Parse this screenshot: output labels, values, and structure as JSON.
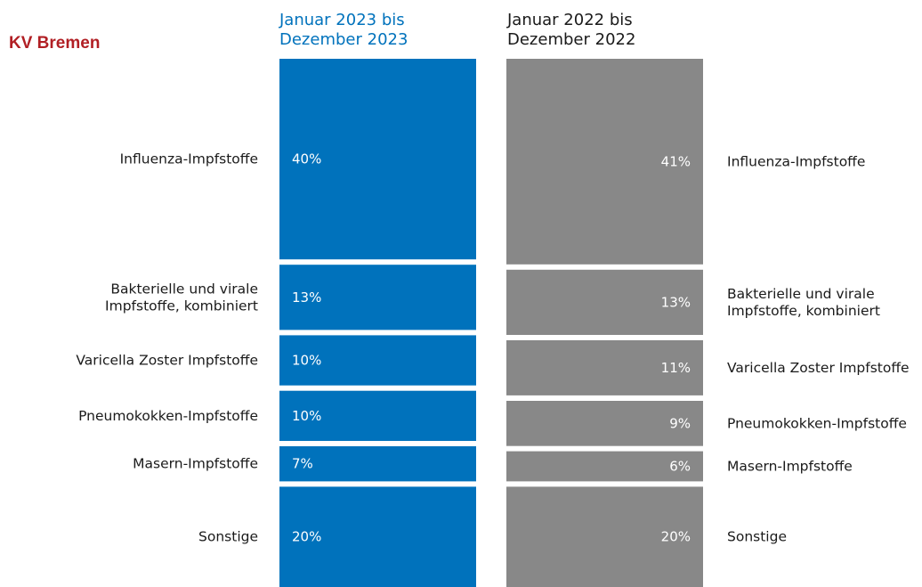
{
  "region_label": "KV Bremen",
  "colors": {
    "region": "#b11f24",
    "series_2023": "#0072bc",
    "series_2022": "#888888",
    "label": "#1a1a1a"
  },
  "columns": {
    "current_title": "Januar 2023 bis\nDezember 2023",
    "previous_title": "Januar 2022 bis\nDezember 2022"
  },
  "chart_data": {
    "type": "bar",
    "stacked": "100%",
    "orientation": "vertical-stacks",
    "categories": [
      "Influenza-Impfstoffe",
      "Bakterielle und virale\nImpfstoffe, kombiniert",
      "Varicella Zoster Impfstoffe",
      "Pneumokokken-Impfstoffe",
      "Masern-Impfstoffe",
      "Sonstige"
    ],
    "series": [
      {
        "name": "Januar 2023 bis Dezember 2023",
        "values": [
          40,
          13,
          10,
          10,
          7,
          20
        ],
        "labels": [
          "40%",
          "13%",
          "10%",
          "10%",
          "7%",
          "20%"
        ]
      },
      {
        "name": "Januar 2022 bis Dezember 2022",
        "values": [
          41,
          13,
          11,
          9,
          6,
          20
        ],
        "labels": [
          "41%",
          "13%",
          "11%",
          "9%",
          "6%",
          "20%"
        ]
      }
    ]
  }
}
